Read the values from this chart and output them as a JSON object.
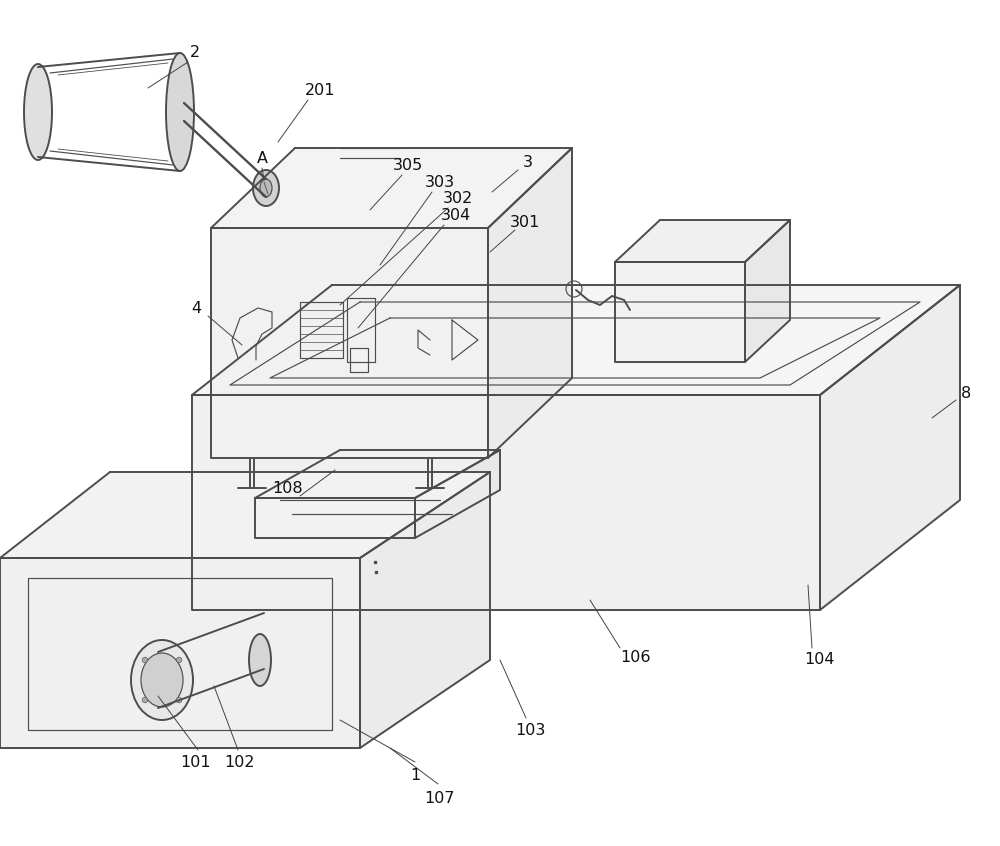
{
  "bg_color": "#ffffff",
  "line_color": "#4d4d4d",
  "lw": 1.4,
  "tlw": 0.85,
  "figsize": [
    10.0,
    8.46
  ],
  "dpi": 100
}
